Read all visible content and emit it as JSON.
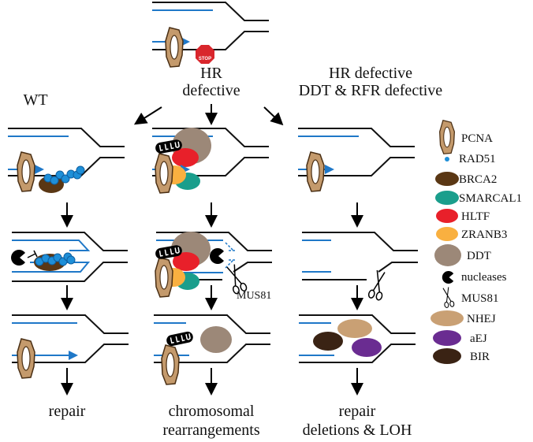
{
  "columns": {
    "wt": {
      "title": "WT",
      "outcome": "repair"
    },
    "hr": {
      "title_line1": "HR",
      "title_line2": "defective",
      "outcome_line1": "chromosomal",
      "outcome_line2": "rearrangements"
    },
    "hr_ddt": {
      "title_line1": "HR defective",
      "title_line2": "DDT & RFR defective",
      "outcome_line1": "repair",
      "outcome_line2": "deletions & LOH"
    }
  },
  "annotations": {
    "mus81": "MUS81",
    "stop_sign": "STOP"
  },
  "legend": [
    {
      "label": "PCNA",
      "icon": "pcna-ring-icon",
      "color": "#c49a6c"
    },
    {
      "label": "RAD51",
      "icon": "dot-icon",
      "color": "#1e8fd8"
    },
    {
      "label": "BRCA2",
      "icon": "ellipse-icon",
      "color": "#5a3714"
    },
    {
      "label": "SMARCAL1",
      "icon": "ellipse-icon",
      "color": "#1a9e8c"
    },
    {
      "label": "HLTF",
      "icon": "ellipse-icon",
      "color": "#e8202a"
    },
    {
      "label": "ZRANB3",
      "icon": "ellipse-icon",
      "color": "#f9b040"
    },
    {
      "label": "DDT",
      "icon": "ellipse-icon",
      "color": "#9c8878"
    },
    {
      "label": "nucleases",
      "icon": "pacman-icon",
      "color": "#000000"
    },
    {
      "label": "MUS81",
      "icon": "scissors-icon",
      "color": "#000000"
    },
    {
      "label": "NHEJ",
      "icon": "ellipse-icon",
      "color": "#c9a074"
    },
    {
      "label": "aEJ",
      "icon": "ellipse-icon",
      "color": "#6a2c91"
    },
    {
      "label": "BIR",
      "icon": "ellipse-icon",
      "color": "#3a2314"
    }
  ]
}
